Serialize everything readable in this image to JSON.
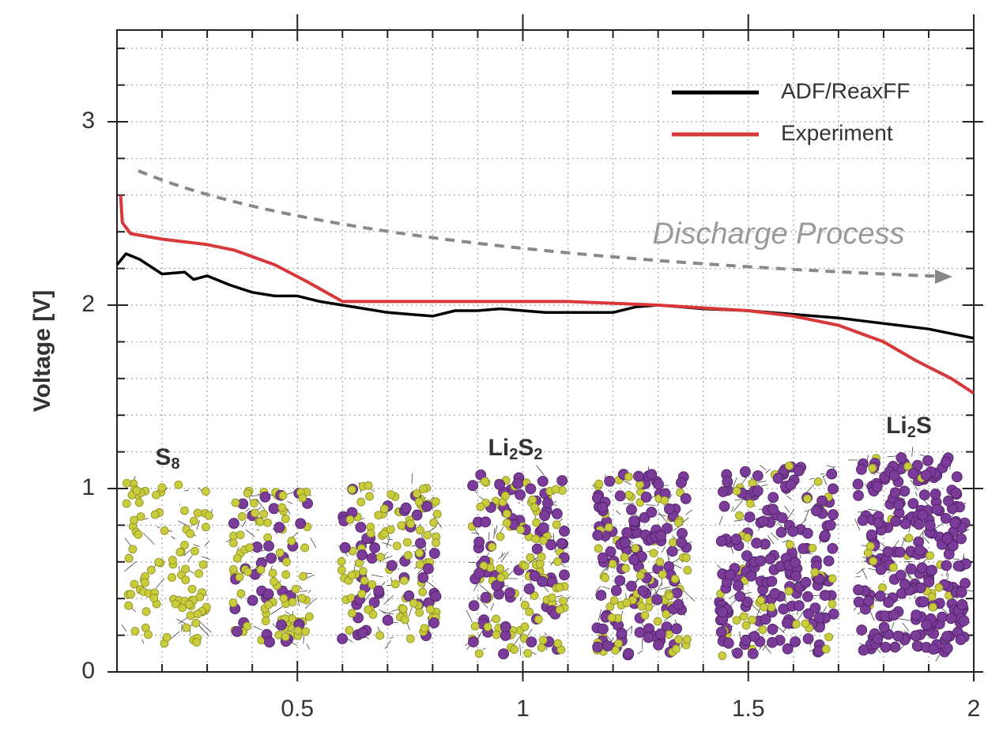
{
  "chart_data": {
    "type": "line",
    "ylabel": "Voltage [V]",
    "xlim": [
      0.1,
      2
    ],
    "ylim": [
      0,
      3.5
    ],
    "xticks": [
      0.5,
      1,
      1.5,
      2
    ],
    "yticks": [
      0,
      1,
      2,
      3
    ],
    "xminor": [
      0.2,
      0.3,
      0.4,
      0.6,
      0.7,
      0.8,
      0.9,
      1.1,
      1.2,
      1.3,
      1.4,
      1.6,
      1.7,
      1.8,
      1.9
    ],
    "yminor": [
      0.2,
      0.4,
      0.6,
      0.8,
      1.2,
      1.4,
      1.6,
      1.8,
      2.2,
      2.4,
      2.6,
      2.8,
      3.2,
      3.4
    ],
    "grid": true,
    "legend": "upper right",
    "series": [
      {
        "name": "ADF/ReaxFF",
        "color": "#000000",
        "x": [
          0.1,
          0.12,
          0.15,
          0.2,
          0.25,
          0.27,
          0.3,
          0.35,
          0.4,
          0.45,
          0.5,
          0.55,
          0.6,
          0.65,
          0.7,
          0.75,
          0.8,
          0.85,
          0.9,
          0.95,
          1.0,
          1.05,
          1.1,
          1.15,
          1.2,
          1.25,
          1.3,
          1.35,
          1.4,
          1.5,
          1.6,
          1.7,
          1.8,
          1.9,
          2.0
        ],
        "values": [
          2.22,
          2.28,
          2.25,
          2.17,
          2.18,
          2.14,
          2.16,
          2.11,
          2.07,
          2.05,
          2.05,
          2.02,
          2.0,
          1.98,
          1.96,
          1.95,
          1.94,
          1.97,
          1.97,
          1.98,
          1.97,
          1.96,
          1.96,
          1.96,
          1.96,
          1.99,
          2.0,
          1.99,
          1.98,
          1.97,
          1.95,
          1.93,
          1.9,
          1.87,
          1.82
        ]
      },
      {
        "name": "Experiment",
        "color": "#d9383a",
        "x": [
          0.108,
          0.112,
          0.13,
          0.2,
          0.3,
          0.36,
          0.45,
          0.52,
          0.6,
          0.7,
          1.0,
          1.1,
          1.3,
          1.5,
          1.6,
          1.7,
          1.8,
          1.87,
          1.95,
          2.0
        ],
        "values": [
          2.6,
          2.45,
          2.39,
          2.36,
          2.33,
          2.3,
          2.22,
          2.13,
          2.02,
          2.02,
          2.02,
          2.02,
          2.0,
          1.97,
          1.94,
          1.89,
          1.8,
          1.7,
          1.6,
          1.52
        ]
      }
    ],
    "annotation": "Discharge Process",
    "structure_labels": [
      [
        "S",
        "8"
      ],
      [
        "Li",
        "2",
        "S",
        "2"
      ],
      [
        "Li",
        "2",
        "S"
      ]
    ]
  }
}
